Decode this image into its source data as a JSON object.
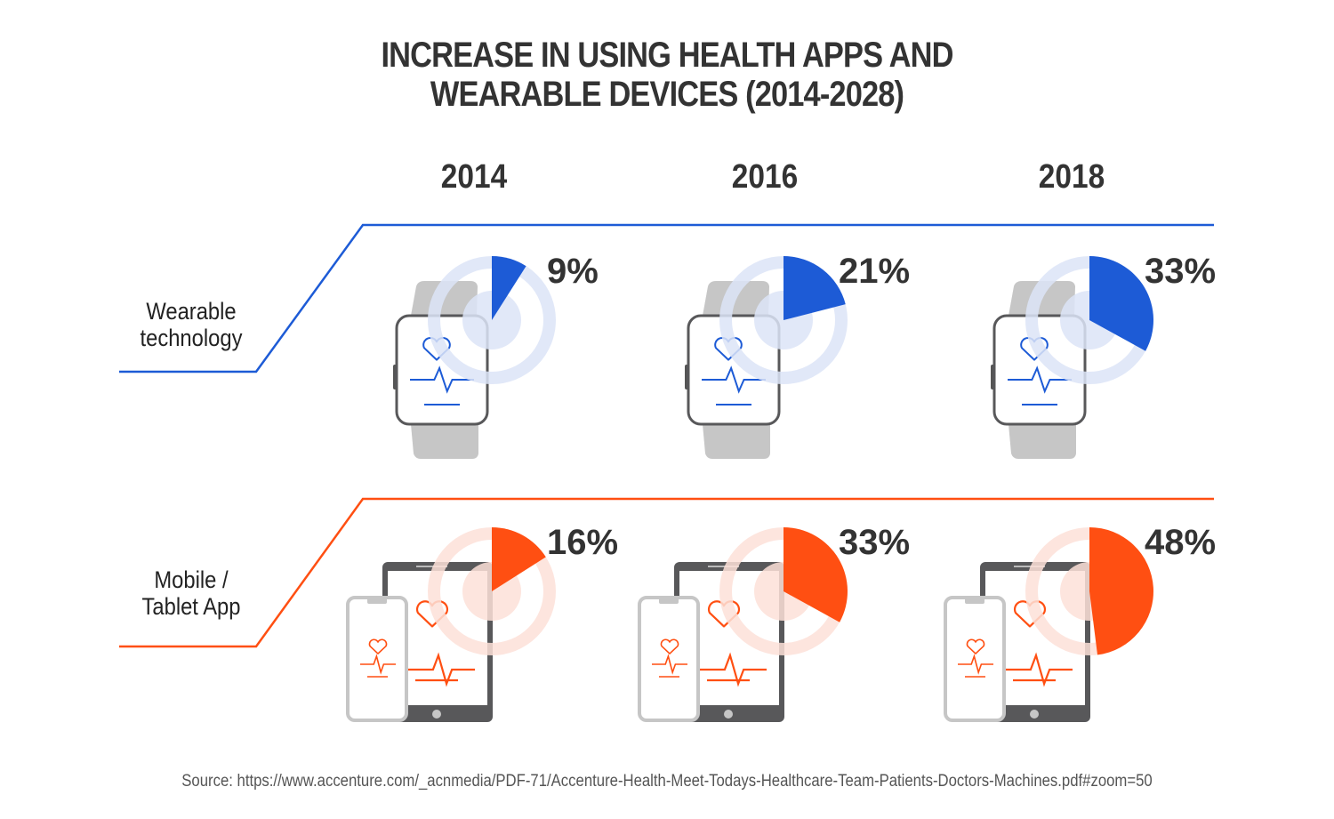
{
  "chart_data": {
    "type": "pie",
    "title_lines": [
      "INCREASE IN USING HEALTH APPS AND",
      "WEARABLE DEVICES (2014-2028)"
    ],
    "categories": [
      "2014",
      "2016",
      "2018"
    ],
    "series": [
      {
        "name": "Wearable technology",
        "label_lines": [
          "Wearable",
          "technology"
        ],
        "icon": "smartwatch-icon",
        "color": "#1d5bd6",
        "light_color": "#dce4f7",
        "values": [
          9,
          21,
          33
        ],
        "labels": [
          "9%",
          "21%",
          "33%"
        ]
      },
      {
        "name": "Mobile / Tablet App",
        "label_lines": [
          "Mobile /",
          "Tablet App"
        ],
        "icon": "phone-tablet-icon",
        "color": "#ff4f12",
        "light_color": "#fde0d8",
        "values": [
          16,
          33,
          48
        ],
        "labels": [
          "16%",
          "33%",
          "48%"
        ]
      }
    ],
    "unit": "%"
  },
  "source": "Source: https://www.accenture.com/_acnmedia/PDF-71/Accenture-Health-Meet-Todays-Healthcare-Team-Patients-Doctors-Machines.pdf#zoom=50"
}
